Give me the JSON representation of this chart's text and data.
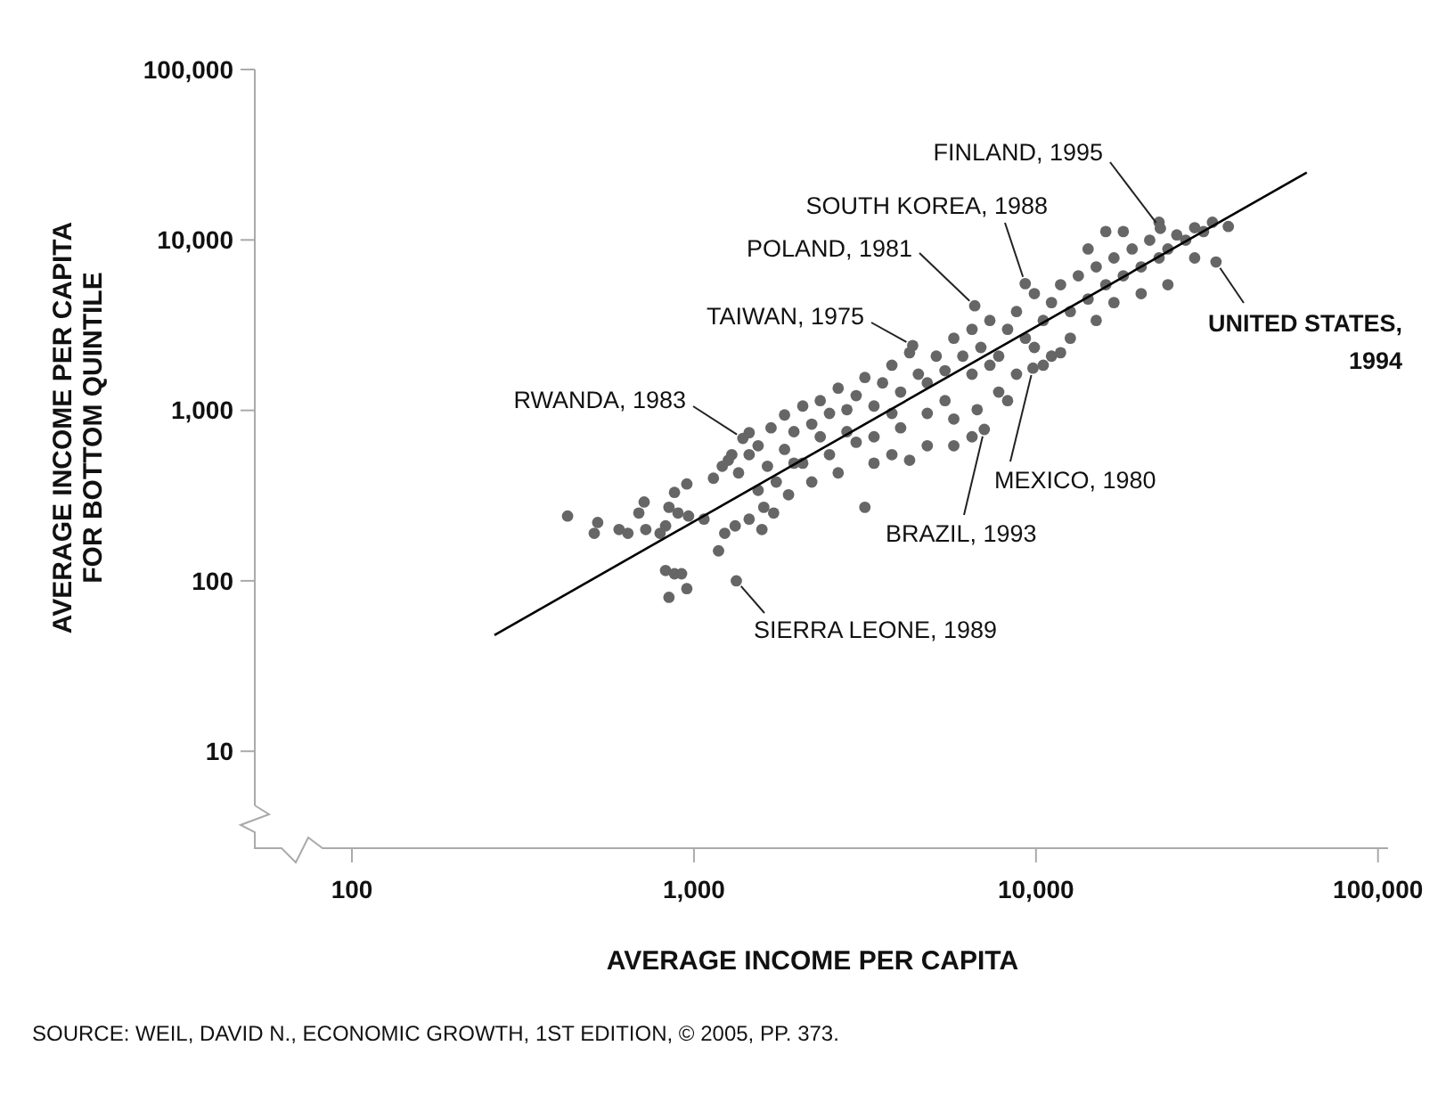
{
  "chart_data": {
    "type": "scatter",
    "log": "xy",
    "xlabel": "AVERAGE INCOME PER CAPITA",
    "ylabel": "AVERAGE INCOME PER CAPITA\nFOR BOTTOM QUINTILE",
    "xlim": [
      52,
      107000
    ],
    "ylim": [
      2.7,
      100000
    ],
    "xticks": [
      100,
      {
        "value": 1000,
        "label": "1,000"
      },
      {
        "value": 10000,
        "label": "10,000"
      },
      {
        "value": 100000,
        "label": "100,000"
      }
    ],
    "yticks": [
      10,
      100,
      {
        "value": 1000,
        "label": "1,000"
      },
      {
        "value": 10000,
        "label": "10,000"
      },
      {
        "value": 100000,
        "label": "100,000"
      }
    ],
    "series": [
      {
        "color": "#666666",
        "marker": "circle",
        "x": [
          427,
          523,
          604,
          511,
          641,
          723,
          690,
          826,
          845,
          877,
          953,
          715,
          898,
          964,
          796,
          1070,
          826,
          877,
          920,
          845,
          953,
          1180,
          1230,
          1320,
          1450,
          1600,
          1580,
          1710,
          1890,
          1260,
          1350,
          1450,
          1640,
          1840,
          2080,
          2210,
          2490,
          2640,
          2980,
          3360,
          3790,
          4270,
          4810,
          5750,
          6500,
          3160,
          1140,
          1210,
          1290,
          1450,
          1540,
          1680,
          1840,
          1960,
          2080,
          2210,
          2340,
          2490,
          2640,
          2800,
          2980,
          3160,
          3360,
          3560,
          3790,
          4020,
          4270,
          4530,
          4810,
          5110,
          5420,
          5750,
          6110,
          6500,
          6900,
          7330,
          7780,
          8260,
          8770,
          9310,
          9890,
          10500,
          11100,
          11800,
          12600,
          13300,
          14200,
          15000,
          16000,
          16900,
          18000,
          19100,
          20300,
          21500,
          22900,
          24300,
          25800,
          27400,
          29100,
          30900,
          32800,
          29100,
          24300,
          20300,
          16900,
          15000,
          12600,
          11800,
          10500,
          8770,
          7780,
          6730,
          5750,
          4810,
          4020,
          3360,
          2800,
          2340,
          1960,
          1740,
          1540,
          9890,
          11100,
          8260,
          5420,
          6500,
          7330,
          3790,
          14200,
          18000,
          22900,
          16000,
          36500,
          1330,
          1390,
          4360,
          6620,
          9300,
          23100,
          33600,
          9800,
          7060
        ],
        "values": [
          240,
          220,
          200,
          190,
          190,
          200,
          250,
          210,
          270,
          330,
          370,
          290,
          250,
          240,
          190,
          230,
          115,
          110,
          110,
          80,
          90,
          150,
          190,
          210,
          230,
          270,
          200,
          250,
          320,
          510,
          430,
          550,
          470,
          590,
          490,
          380,
          550,
          430,
          650,
          490,
          550,
          510,
          620,
          620,
          700,
          270,
          400,
          470,
          550,
          740,
          620,
          790,
          940,
          750,
          1060,
          830,
          1140,
          960,
          1350,
          1010,
          1220,
          1560,
          1060,
          1450,
          1840,
          1280,
          2180,
          1630,
          1450,
          2080,
          1710,
          2650,
          2080,
          2990,
          2340,
          3370,
          2080,
          2990,
          3800,
          2650,
          4840,
          3370,
          4290,
          5460,
          3800,
          6160,
          4500,
          6950,
          5460,
          7840,
          6160,
          8850,
          6950,
          9970,
          7840,
          8850,
          10700,
          9970,
          11800,
          11200,
          12700,
          7840,
          5460,
          4840,
          4290,
          3370,
          2650,
          2180,
          1840,
          1630,
          1280,
          1010,
          890,
          960,
          790,
          700,
          750,
          700,
          490,
          380,
          340,
          2340,
          2080,
          1140,
          1140,
          1630,
          1840,
          960,
          8850,
          11200,
          12700,
          11200,
          12000,
          100,
          685,
          2400,
          4110,
          5540,
          11700,
          7420,
          1770,
          773
        ]
      },
      {
        "type": "line",
        "color": "#000000",
        "x": [
          261,
          61900
        ],
        "values": [
          48,
          24900
        ]
      }
    ],
    "annotations": [
      {
        "text": "FINLAND, 1995",
        "x": 23100,
        "y": 11700
      },
      {
        "text": "SOUTH KOREA, 1988",
        "x": 9300,
        "y": 5540
      },
      {
        "text": "POLAND, 1981",
        "x": 6620,
        "y": 4110
      },
      {
        "text": "TAIWAN, 1975",
        "x": 4360,
        "y": 2400
      },
      {
        "text": "RWANDA, 1983",
        "x": 1390,
        "y": 685
      },
      {
        "text": "UNITED STATES, 1994",
        "x": 33600,
        "y": 7420
      },
      {
        "text": "MEXICO, 1980",
        "x": 9800,
        "y": 1770
      },
      {
        "text": "BRAZIL, 1993",
        "x": 7060,
        "y": 773
      },
      {
        "text": "SIERRA LEONE, 1989",
        "x": 1330,
        "y": 100
      },
      "SOURCE: WEIL, DAVID N., ECONOMIC GROWTH, 1ST EDITION, © 2005, PP. 373."
    ]
  }
}
